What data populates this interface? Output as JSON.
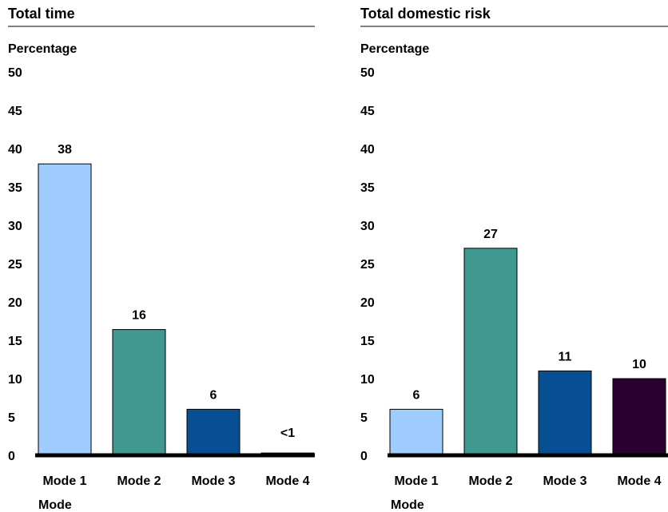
{
  "chart_data": [
    {
      "type": "bar",
      "title": "Total time",
      "ylabel": "Percentage",
      "xlabel": "Mode",
      "ylim": [
        0,
        50
      ],
      "yticks": [
        0,
        5,
        10,
        15,
        20,
        25,
        30,
        35,
        40,
        45,
        50
      ],
      "categories": [
        "Mode 1",
        "Mode 2",
        "Mode 3",
        "Mode 4"
      ],
      "values": [
        38,
        16.4,
        6,
        0.3
      ],
      "data_labels": [
        "38",
        "16",
        "6",
        "<1"
      ],
      "colors": [
        "#9fcdff",
        "#3f9990",
        "#064f93",
        "#2a0030"
      ]
    },
    {
      "type": "bar",
      "title": "Total domestic risk",
      "ylabel": "Percentage",
      "xlabel": "Mode",
      "ylim": [
        0,
        50
      ],
      "yticks": [
        0,
        5,
        10,
        15,
        20,
        25,
        30,
        35,
        40,
        45,
        50
      ],
      "categories": [
        "Mode 1",
        "Mode 2",
        "Mode 3",
        "Mode 4"
      ],
      "values": [
        6,
        27,
        11,
        10
      ],
      "data_labels": [
        "6",
        "27",
        "11",
        "10"
      ],
      "colors": [
        "#9fcdff",
        "#3f9990",
        "#064f93",
        "#2a0030"
      ]
    }
  ]
}
